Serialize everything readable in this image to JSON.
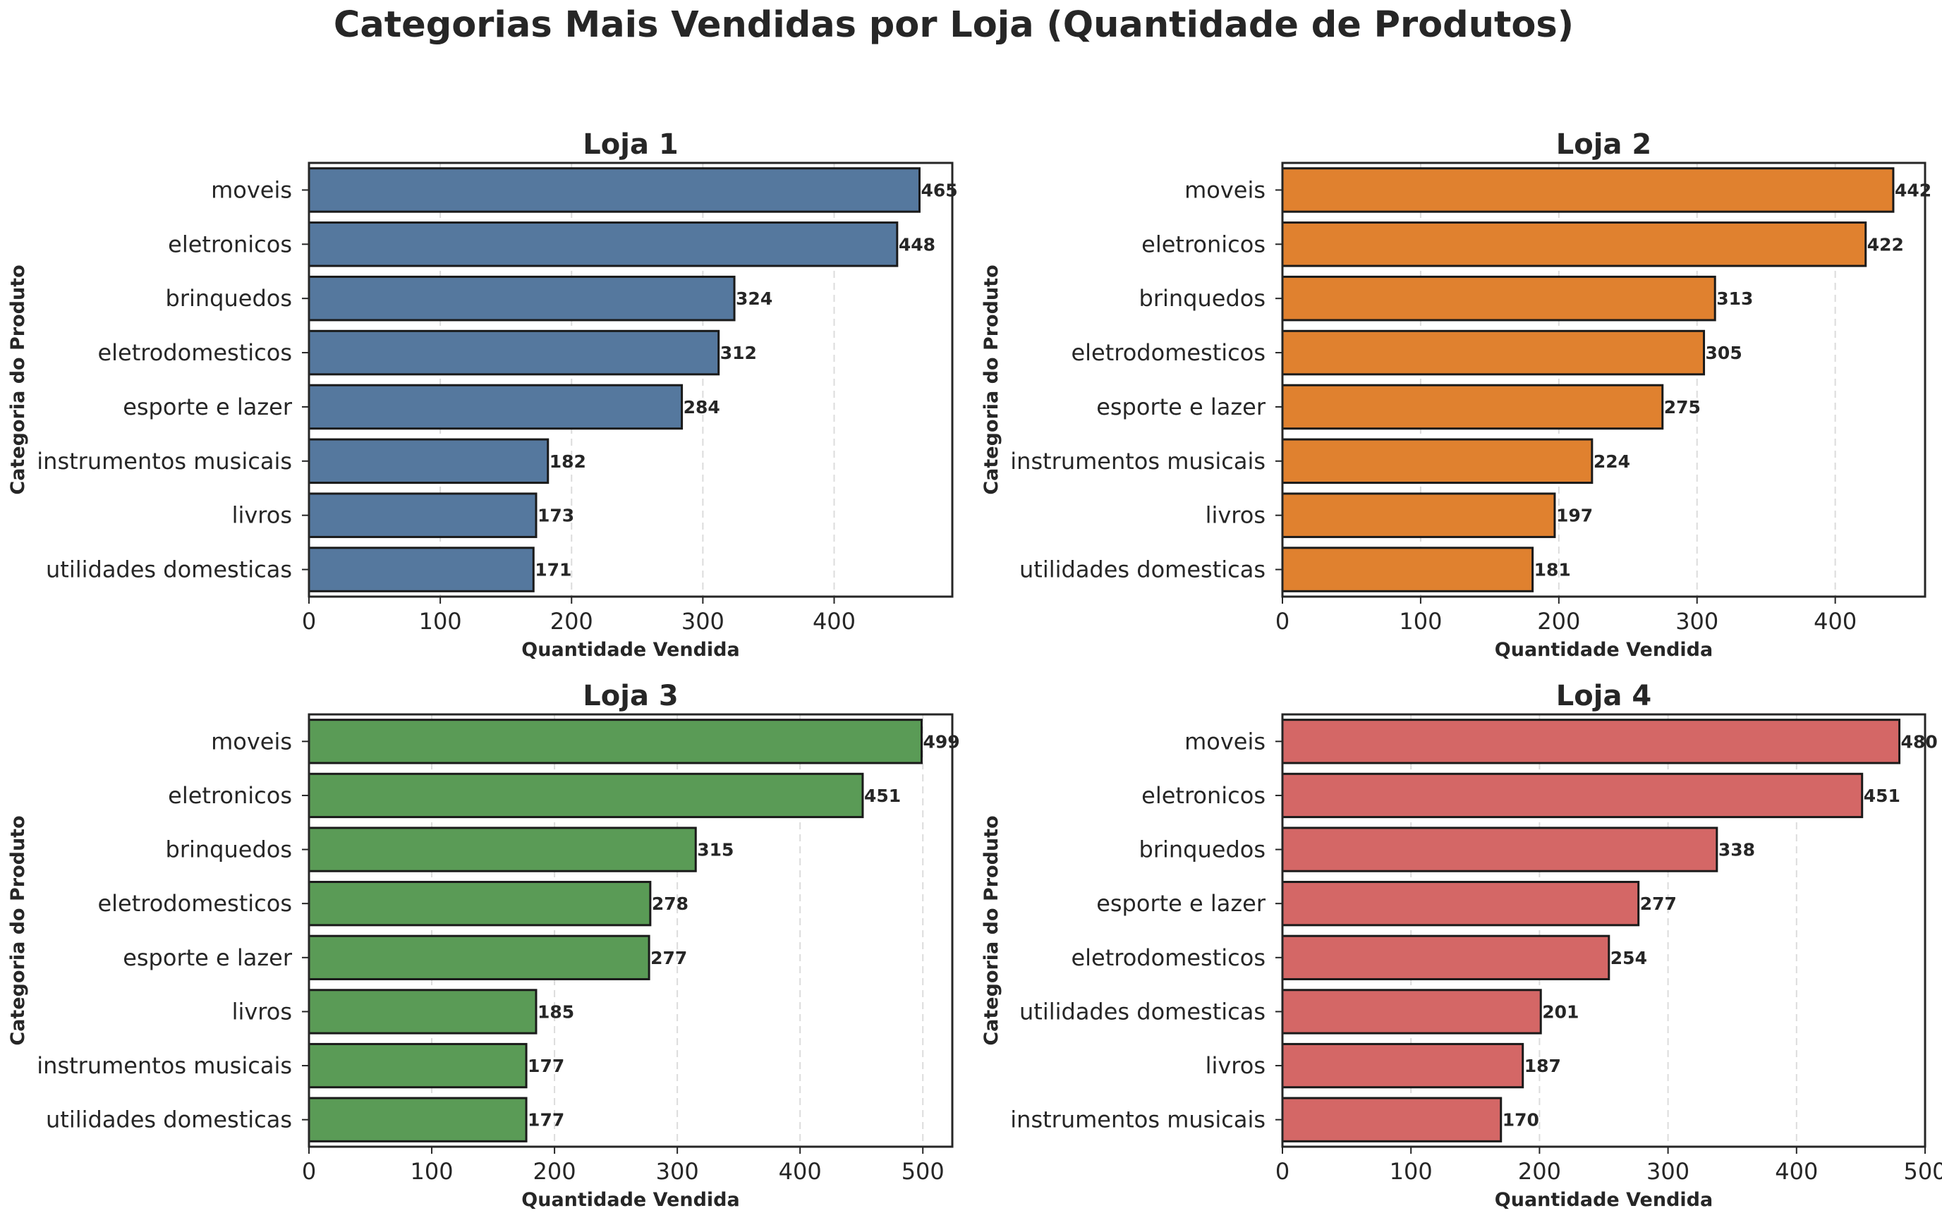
{
  "suptitle": "Categorias Mais Vendidas por Loja (Quantidade de Produtos)",
  "chart_data": [
    {
      "type": "bar",
      "orientation": "horizontal",
      "title": "Loja 1",
      "xlabel": "Quantidade Vendida",
      "ylabel": "Categoria do Produto",
      "color": "#55789e",
      "xlim": [
        0,
        490
      ],
      "xticks": [
        0,
        100,
        200,
        300,
        400
      ],
      "grid": "x-dashed",
      "categories": [
        "moveis",
        "eletronicos",
        "brinquedos",
        "eletrodomesticos",
        "esporte e lazer",
        "instrumentos musicais",
        "livros",
        "utilidades domesticas"
      ],
      "values": [
        465,
        448,
        324,
        312,
        284,
        182,
        173,
        171
      ]
    },
    {
      "type": "bar",
      "orientation": "horizontal",
      "title": "Loja 2",
      "xlabel": "Quantidade Vendida",
      "ylabel": "Categoria do Produto",
      "color": "#e0812f",
      "xlim": [
        0,
        465
      ],
      "xticks": [
        0,
        100,
        200,
        300,
        400
      ],
      "grid": "x-dashed",
      "categories": [
        "moveis",
        "eletronicos",
        "brinquedos",
        "eletrodomesticos",
        "esporte e lazer",
        "instrumentos musicais",
        "livros",
        "utilidades domesticas"
      ],
      "values": [
        442,
        422,
        313,
        305,
        275,
        224,
        197,
        181
      ]
    },
    {
      "type": "bar",
      "orientation": "horizontal",
      "title": "Loja 3",
      "xlabel": "Quantidade Vendida",
      "ylabel": "Categoria do Produto",
      "color": "#5a9b56",
      "xlim": [
        0,
        524
      ],
      "xticks": [
        0,
        100,
        200,
        300,
        400,
        500
      ],
      "grid": "x-dashed",
      "categories": [
        "moveis",
        "eletronicos",
        "brinquedos",
        "eletrodomesticos",
        "esporte e lazer",
        "livros",
        "instrumentos musicais",
        "utilidades domesticas"
      ],
      "values": [
        499,
        451,
        315,
        278,
        277,
        185,
        177,
        177
      ]
    },
    {
      "type": "bar",
      "orientation": "horizontal",
      "title": "Loja 4",
      "xlabel": "Quantidade Vendida",
      "ylabel": "Categoria do Produto",
      "color": "#d46766",
      "xlim": [
        0,
        500
      ],
      "xticks": [
        0,
        100,
        200,
        300,
        400,
        500
      ],
      "grid": "x-dashed",
      "categories": [
        "moveis",
        "eletronicos",
        "brinquedos",
        "esporte e lazer",
        "eletrodomesticos",
        "utilidades domesticas",
        "livros",
        "instrumentos musicais"
      ],
      "values": [
        480,
        451,
        338,
        277,
        254,
        201,
        187,
        170
      ]
    }
  ]
}
